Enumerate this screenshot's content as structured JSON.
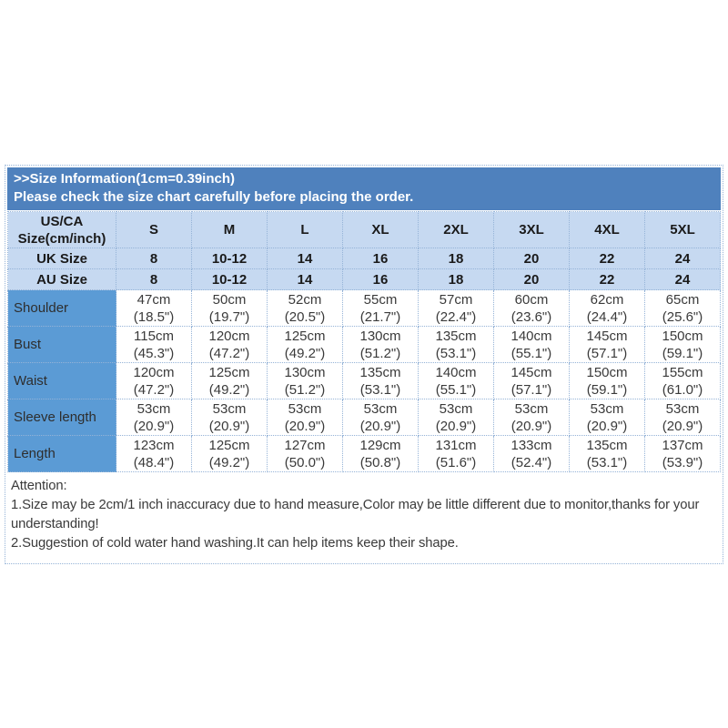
{
  "title_band": {
    "line1": ">>Size Information(1cm=0.39inch)",
    "line2": "Please check the size chart carefully before placing the order."
  },
  "table": {
    "corner": "US/CA\nSize(cm/inch)",
    "sizes": [
      "S",
      "M",
      "L",
      "XL",
      "2XL",
      "3XL",
      "4XL",
      "5XL"
    ],
    "uk": {
      "label": "UK Size",
      "values": [
        "8",
        "10-12",
        "14",
        "16",
        "18",
        "20",
        "22",
        "24"
      ]
    },
    "au": {
      "label": "AU Size",
      "values": [
        "8",
        "10-12",
        "14",
        "16",
        "18",
        "20",
        "22",
        "24"
      ]
    },
    "rows": [
      {
        "label": "Shoulder",
        "cells": [
          "47cm\n(18.5\")",
          "50cm\n(19.7\")",
          "52cm\n(20.5\")",
          "55cm\n(21.7\")",
          "57cm\n(22.4\")",
          "60cm\n(23.6\")",
          "62cm\n(24.4\")",
          "65cm\n(25.6\")"
        ]
      },
      {
        "label": "Bust",
        "cells": [
          "115cm\n(45.3\")",
          "120cm\n(47.2\")",
          "125cm\n(49.2\")",
          "130cm\n(51.2\")",
          "135cm\n(53.1\")",
          "140cm\n(55.1\")",
          "145cm\n(57.1\")",
          "150cm\n(59.1\")"
        ]
      },
      {
        "label": "Waist",
        "cells": [
          "120cm\n(47.2\")",
          "125cm\n(49.2\")",
          "130cm\n(51.2\")",
          "135cm\n(53.1\")",
          "140cm\n(55.1\")",
          "145cm\n(57.1\")",
          "150cm\n(59.1\")",
          "155cm\n(61.0\")"
        ]
      },
      {
        "label": "Sleeve length",
        "cells": [
          "53cm\n(20.9\")",
          "53cm\n(20.9\")",
          "53cm\n(20.9\")",
          "53cm\n(20.9\")",
          "53cm\n(20.9\")",
          "53cm\n(20.9\")",
          "53cm\n(20.9\")",
          "53cm\n(20.9\")"
        ]
      },
      {
        "label": "Length",
        "cells": [
          "123cm\n(48.4\")",
          "125cm\n(49.2\")",
          "127cm\n(50.0\")",
          "129cm\n(50.8\")",
          "131cm\n(51.6\")",
          "133cm\n(52.4\")",
          "135cm\n(53.1\")",
          "137cm\n(53.9\")"
        ]
      }
    ]
  },
  "attention": {
    "heading": "Attention:",
    "line1": "1.Size may be 2cm/1 inch inaccuracy due to hand measure,Color may be little different due to monitor,thanks for your understanding!",
    "line2": "2.Suggestion of cold water hand washing.It can help items keep their shape."
  },
  "colors": {
    "band_blue": "#4f81bd",
    "header_light_blue": "#c6d9f1",
    "label_blue": "#5b9bd5",
    "dotted_border": "#95b3d7"
  }
}
